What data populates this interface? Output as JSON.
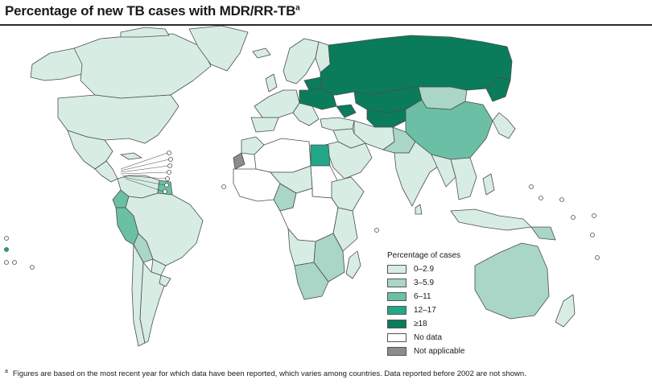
{
  "title": {
    "text": "Percentage of new TB cases with MDR/RR-TB",
    "superscript": "a"
  },
  "legend": {
    "title": "Percentage of cases",
    "items": [
      {
        "label": "0–2.9",
        "color": "#d7ede4"
      },
      {
        "label": "3–5.9",
        "color": "#a9d6c6"
      },
      {
        "label": "6–11",
        "color": "#6bbfa5"
      },
      {
        "label": "12–17",
        "color": "#22a787"
      },
      {
        "label": "≥18",
        "color": "#0a7c5b"
      },
      {
        "label": "No data",
        "color": "#ffffff"
      },
      {
        "label": "Not applicable",
        "color": "#8c8c8c"
      }
    ]
  },
  "footnote": {
    "marker": "a",
    "text": "Figures are based on the most recent year for which data have been reported, which varies among countries. Data reported before 2002 are not shown."
  },
  "colors": {
    "border": "#4d4d4d",
    "title_rule": "#2a2a2a"
  }
}
